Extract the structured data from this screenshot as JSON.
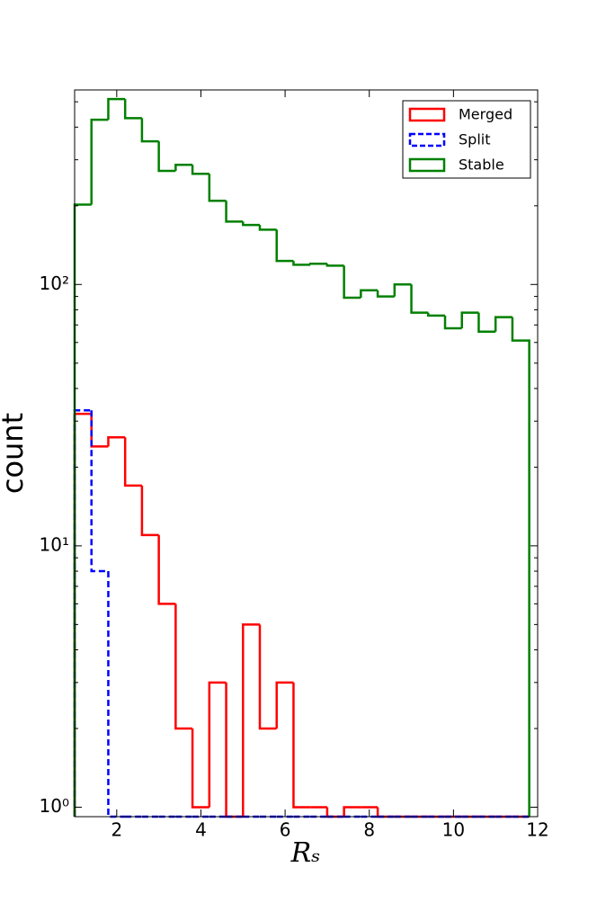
{
  "chart_data": {
    "type": "histogram",
    "x_label": "Rₛ",
    "y_label": "count",
    "bins": [
      1.0,
      1.4,
      1.8,
      2.2,
      2.6,
      3.0,
      3.4,
      3.8,
      4.2,
      4.6,
      5.0,
      5.4,
      5.8,
      6.2,
      6.6,
      7.0,
      7.4,
      7.8,
      8.2,
      8.6,
      9.0,
      9.4,
      9.8,
      10.2,
      10.6,
      11.0,
      11.4,
      11.8
    ],
    "series": [
      {
        "name": "Merged",
        "color": "#ff0000",
        "dashed": false,
        "values": [
          32,
          24,
          26,
          17,
          11,
          6,
          2,
          1,
          3,
          0,
          5,
          2,
          3,
          1,
          1,
          0,
          1,
          1,
          0,
          0,
          0,
          0,
          0,
          0,
          0,
          0,
          0
        ]
      },
      {
        "name": "Split",
        "color": "#0000ff",
        "dashed": true,
        "values": [
          33,
          8,
          0,
          0,
          0,
          0,
          0,
          0,
          0,
          0,
          0,
          0,
          0,
          0,
          0,
          0,
          0,
          0,
          0,
          0,
          0,
          0,
          0,
          0,
          0,
          0,
          0
        ]
      },
      {
        "name": "Stable",
        "color": "#008000",
        "dashed": false,
        "values": [
          202,
          427,
          512,
          433,
          353,
          272,
          287,
          265,
          209,
          174,
          169,
          162,
          123,
          119,
          120,
          118,
          89,
          95,
          90,
          100,
          78,
          76,
          68,
          78,
          66,
          75,
          61
        ]
      }
    ],
    "xlim": [
      1,
      12
    ],
    "xticks": [
      2,
      4,
      6,
      8,
      10,
      12
    ],
    "ylim": [
      0.92,
      555
    ],
    "log_y": true,
    "yticks": [
      {
        "value": 1,
        "label": "10⁰"
      },
      {
        "value": 10,
        "label": "10¹"
      },
      {
        "value": 100,
        "label": "10²"
      }
    ],
    "yminorticks": [
      2,
      3,
      4,
      5,
      6,
      7,
      8,
      9,
      20,
      30,
      40,
      50,
      60,
      70,
      80,
      90,
      200,
      300,
      400,
      500
    ],
    "legend": "upper right"
  }
}
